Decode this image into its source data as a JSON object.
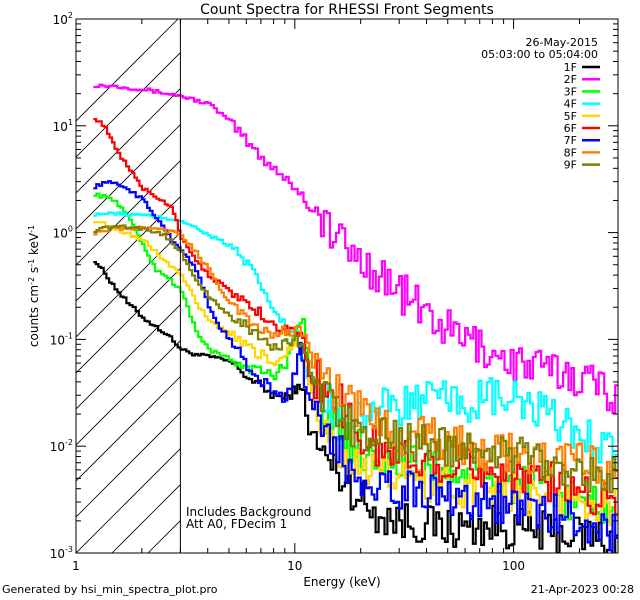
{
  "chart_data": {
    "type": "line",
    "title": "Count Spectra for RHESSI Front Segments",
    "xlabel": "Energy (keV)",
    "ylabel_parts": {
      "base": "counts cm",
      "exp1": "-2",
      "mid1": " s",
      "exp2": "-1",
      "mid2": " keV",
      "exp3": "-1"
    },
    "xscale": "log",
    "yscale": "log",
    "xlim": [
      1,
      300
    ],
    "ylim": [
      0.001,
      100
    ],
    "x_ticks": [
      {
        "value": 1,
        "label": "1"
      },
      {
        "value": 10,
        "label": "10"
      },
      {
        "value": 100,
        "label": "100"
      }
    ],
    "y_ticks": [
      {
        "value": 0.001,
        "base": "10",
        "exp": "-3"
      },
      {
        "value": 0.01,
        "base": "10",
        "exp": "-2"
      },
      {
        "value": 0.1,
        "base": "10",
        "exp": "-1"
      },
      {
        "value": 1,
        "base": "10",
        "exp": "0"
      },
      {
        "value": 10,
        "base": "10",
        "exp": "1"
      },
      {
        "value": 100,
        "base": "10",
        "exp": "2"
      }
    ],
    "date": "26-May-2015",
    "time_range": "05:03:00 to 05:04:00",
    "shaded_region_kev": [
      1,
      3
    ],
    "annotations": [
      "Includes Background",
      "Att A0, FDecim 1"
    ],
    "series": [
      {
        "name": "1F",
        "color": "#000000",
        "points": [
          [
            1.2,
            0.55
          ],
          [
            1.3,
            0.45
          ],
          [
            1.5,
            0.3
          ],
          [
            1.7,
            0.22
          ],
          [
            2.0,
            0.16
          ],
          [
            2.3,
            0.13
          ],
          [
            2.6,
            0.11
          ],
          [
            3.0,
            0.08
          ],
          [
            3.5,
            0.072
          ],
          [
            4.2,
            0.068
          ],
          [
            5.0,
            0.062
          ],
          [
            6.0,
            0.045
          ],
          [
            7.0,
            0.035
          ],
          [
            8.0,
            0.03
          ],
          [
            9.0,
            0.028
          ],
          [
            10.0,
            0.035
          ],
          [
            10.8,
            0.032
          ],
          [
            11.5,
            0.014
          ],
          [
            13,
            0.009
          ],
          [
            15,
            0.006
          ],
          [
            18,
            0.004
          ],
          [
            22,
            0.0025
          ],
          [
            30,
            0.002
          ],
          [
            50,
            0.0017
          ],
          [
            80,
            0.0018
          ],
          [
            120,
            0.0016
          ],
          [
            200,
            0.0015
          ],
          [
            300,
            0.0013
          ]
        ]
      },
      {
        "name": "2F",
        "color": "#ff00ff",
        "points": [
          [
            1.2,
            24
          ],
          [
            1.5,
            23.5
          ],
          [
            2.0,
            22
          ],
          [
            3.0,
            19
          ],
          [
            4.0,
            16
          ],
          [
            5.0,
            11
          ],
          [
            6.0,
            7
          ],
          [
            7.0,
            5
          ],
          [
            8.0,
            4
          ],
          [
            10.0,
            2.6
          ],
          [
            12,
            1.6
          ],
          [
            14,
            1.1
          ],
          [
            17,
            0.7
          ],
          [
            20,
            0.55
          ],
          [
            25,
            0.38
          ],
          [
            30,
            0.28
          ],
          [
            40,
            0.17
          ],
          [
            50,
            0.12
          ],
          [
            60,
            0.1
          ],
          [
            80,
            0.075
          ],
          [
            100,
            0.06
          ],
          [
            150,
            0.05
          ],
          [
            200,
            0.045
          ],
          [
            300,
            0.03
          ]
        ]
      },
      {
        "name": "3F",
        "color": "#00ff00",
        "points": [
          [
            1.2,
            2.3
          ],
          [
            1.5,
            2.0
          ],
          [
            1.8,
            1.2
          ],
          [
            2.0,
            0.75
          ],
          [
            2.3,
            0.45
          ],
          [
            2.6,
            0.38
          ],
          [
            3.0,
            0.28
          ],
          [
            3.5,
            0.12
          ],
          [
            4.0,
            0.08
          ],
          [
            5.0,
            0.065
          ],
          [
            6.0,
            0.055
          ],
          [
            7.0,
            0.05
          ],
          [
            8.0,
            0.045
          ],
          [
            9.0,
            0.06
          ],
          [
            10.0,
            0.13
          ],
          [
            10.8,
            0.14
          ],
          [
            11.5,
            0.05
          ],
          [
            13,
            0.025
          ],
          [
            15,
            0.015
          ],
          [
            20,
            0.009
          ],
          [
            30,
            0.007
          ],
          [
            50,
            0.0055
          ],
          [
            80,
            0.005
          ],
          [
            120,
            0.004
          ],
          [
            200,
            0.003
          ],
          [
            300,
            0.0025
          ]
        ]
      },
      {
        "name": "4F",
        "color": "#00ffff",
        "points": [
          [
            1.2,
            1.5
          ],
          [
            1.5,
            1.5
          ],
          [
            2.0,
            1.45
          ],
          [
            3.0,
            1.3
          ],
          [
            4.0,
            0.95
          ],
          [
            5.0,
            0.75
          ],
          [
            6.0,
            0.5
          ],
          [
            7.0,
            0.3
          ],
          [
            8.0,
            0.18
          ],
          [
            9.0,
            0.13
          ],
          [
            10.0,
            0.11
          ],
          [
            11.0,
            0.05
          ],
          [
            13,
            0.03
          ],
          [
            16,
            0.022
          ],
          [
            20,
            0.02
          ],
          [
            30,
            0.024
          ],
          [
            40,
            0.027
          ],
          [
            60,
            0.025
          ],
          [
            80,
            0.028
          ],
          [
            100,
            0.026
          ],
          [
            150,
            0.018
          ],
          [
            200,
            0.013
          ],
          [
            300,
            0.009
          ]
        ]
      },
      {
        "name": "5F",
        "color": "#ffd700",
        "points": [
          [
            1.2,
            1.3
          ],
          [
            1.5,
            1.1
          ],
          [
            2.0,
            0.85
          ],
          [
            2.5,
            0.55
          ],
          [
            3.0,
            0.4
          ],
          [
            3.5,
            0.22
          ],
          [
            4.0,
            0.15
          ],
          [
            5.0,
            0.11
          ],
          [
            6.0,
            0.085
          ],
          [
            7.0,
            0.07
          ],
          [
            8.0,
            0.06
          ],
          [
            9.0,
            0.075
          ],
          [
            10.0,
            0.1
          ],
          [
            10.8,
            0.09
          ],
          [
            11.5,
            0.04
          ],
          [
            13,
            0.018
          ],
          [
            15,
            0.01
          ],
          [
            20,
            0.006
          ],
          [
            30,
            0.005
          ],
          [
            50,
            0.004
          ],
          [
            80,
            0.004
          ],
          [
            120,
            0.0035
          ],
          [
            200,
            0.003
          ],
          [
            300,
            0.0025
          ]
        ]
      },
      {
        "name": "6F",
        "color": "#ff0000",
        "points": [
          [
            1.2,
            12
          ],
          [
            1.35,
            9.5
          ],
          [
            1.5,
            6
          ],
          [
            1.8,
            3.5
          ],
          [
            2.0,
            2.6
          ],
          [
            2.4,
            2.0
          ],
          [
            2.7,
            1.8
          ],
          [
            3.0,
            0.9
          ],
          [
            3.5,
            0.55
          ],
          [
            4.0,
            0.4
          ],
          [
            5.0,
            0.28
          ],
          [
            6.0,
            0.22
          ],
          [
            7.0,
            0.17
          ],
          [
            8.0,
            0.14
          ],
          [
            9.0,
            0.12
          ],
          [
            10.0,
            0.12
          ],
          [
            10.8,
            0.1
          ],
          [
            11.5,
            0.045
          ],
          [
            13,
            0.04
          ],
          [
            15,
            0.03
          ],
          [
            17,
            0.02
          ],
          [
            20,
            0.012
          ],
          [
            25,
            0.009
          ],
          [
            30,
            0.008
          ],
          [
            50,
            0.007
          ],
          [
            80,
            0.006
          ],
          [
            120,
            0.005
          ],
          [
            200,
            0.004
          ],
          [
            300,
            0.003
          ]
        ]
      },
      {
        "name": "7F",
        "color": "#0000ff",
        "points": [
          [
            1.2,
            2.7
          ],
          [
            1.4,
            3.0
          ],
          [
            1.7,
            2.6
          ],
          [
            2.0,
            2.0
          ],
          [
            2.3,
            1.4
          ],
          [
            2.7,
            0.85
          ],
          [
            3.0,
            0.7
          ],
          [
            3.5,
            0.45
          ],
          [
            4.0,
            0.2
          ],
          [
            4.5,
            0.13
          ],
          [
            5.0,
            0.1
          ],
          [
            5.5,
            0.075
          ],
          [
            6.0,
            0.055
          ],
          [
            7.0,
            0.04
          ],
          [
            8.0,
            0.032
          ],
          [
            9.0,
            0.028
          ],
          [
            10.0,
            0.05
          ],
          [
            10.5,
            0.1
          ],
          [
            11.0,
            0.04
          ],
          [
            12,
            0.02
          ],
          [
            14,
            0.012
          ],
          [
            16,
            0.008
          ],
          [
            20,
            0.005
          ],
          [
            30,
            0.004
          ],
          [
            50,
            0.0035
          ],
          [
            80,
            0.003
          ],
          [
            120,
            0.0025
          ],
          [
            200,
            0.002
          ],
          [
            300,
            0.0015
          ]
        ]
      },
      {
        "name": "8F",
        "color": "#ff8000",
        "points": [
          [
            1.2,
            1.0
          ],
          [
            1.5,
            1.1
          ],
          [
            2.0,
            1.1
          ],
          [
            2.5,
            1.05
          ],
          [
            3.0,
            0.95
          ],
          [
            3.5,
            0.65
          ],
          [
            4.0,
            0.45
          ],
          [
            4.5,
            0.3
          ],
          [
            5.0,
            0.22
          ],
          [
            6.0,
            0.15
          ],
          [
            7.0,
            0.12
          ],
          [
            8.0,
            0.11
          ],
          [
            9.0,
            0.12
          ],
          [
            10.0,
            0.12
          ],
          [
            11.0,
            0.12
          ],
          [
            12,
            0.06
          ],
          [
            14,
            0.04
          ],
          [
            16,
            0.028
          ],
          [
            20,
            0.02
          ],
          [
            25,
            0.016
          ],
          [
            30,
            0.013
          ],
          [
            40,
            0.012
          ],
          [
            60,
            0.01
          ],
          [
            80,
            0.009
          ],
          [
            120,
            0.008
          ],
          [
            200,
            0.007
          ],
          [
            300,
            0.006
          ]
        ]
      },
      {
        "name": "9F",
        "color": "#808000",
        "points": [
          [
            1.2,
            1.05
          ],
          [
            1.5,
            1.15
          ],
          [
            2.0,
            1.1
          ],
          [
            2.5,
            0.95
          ],
          [
            3.0,
            0.65
          ],
          [
            3.5,
            0.35
          ],
          [
            4.0,
            0.25
          ],
          [
            4.5,
            0.2
          ],
          [
            5.0,
            0.17
          ],
          [
            6.0,
            0.13
          ],
          [
            7.0,
            0.1
          ],
          [
            8.0,
            0.085
          ],
          [
            9.0,
            0.09
          ],
          [
            10.0,
            0.11
          ],
          [
            11.0,
            0.07
          ],
          [
            12,
            0.04
          ],
          [
            14,
            0.025
          ],
          [
            17,
            0.017
          ],
          [
            20,
            0.013
          ],
          [
            30,
            0.011
          ],
          [
            50,
            0.01
          ],
          [
            80,
            0.009
          ],
          [
            120,
            0.008
          ],
          [
            200,
            0.006
          ],
          [
            300,
            0.005
          ]
        ]
      }
    ]
  },
  "footer": {
    "generated_by": "Generated by hsi_min_spectra_plot.pro",
    "timestamp": "21-Apr-2023 00:28"
  }
}
